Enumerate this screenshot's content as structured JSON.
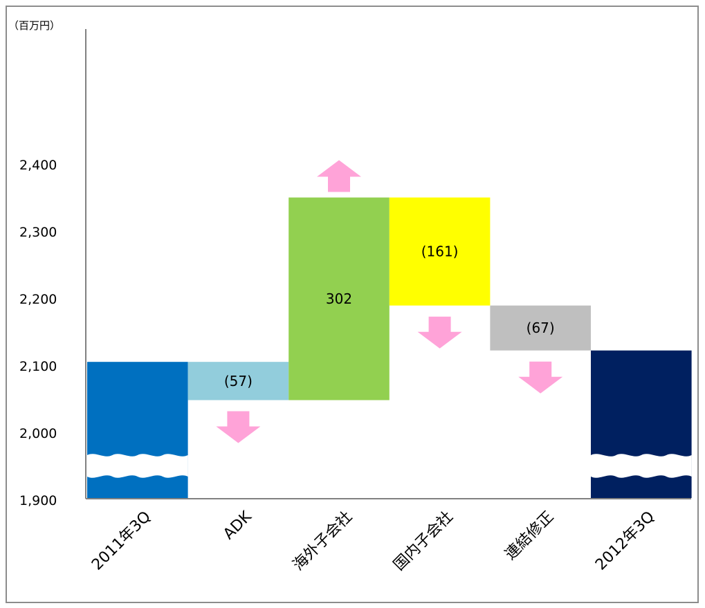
{
  "chart_data": {
    "type": "waterfall",
    "unit_label": "（百万円）",
    "y_ticks": [
      1900,
      2000,
      2100,
      2200,
      2300,
      2400
    ],
    "y_tick_labels": [
      "1,900",
      "2,000",
      "2,100",
      "2,200",
      "2,300",
      "2,400"
    ],
    "ylim": [
      1790,
      2470
    ],
    "grid": false,
    "axis_break": true,
    "categories": [
      "2011年3Q",
      "ADK",
      "海外子会社",
      "国内子会社",
      "連結修正",
      "2012年3Q"
    ],
    "bars": [
      {
        "label": "2011年3Q",
        "kind": "total",
        "value": 2106,
        "bar_label": "",
        "color": "#0070c0"
      },
      {
        "label": "ADK",
        "kind": "delta",
        "from": 2106,
        "to": 2049,
        "change": -57,
        "bar_label": "(57)",
        "color": "#92cddc"
      },
      {
        "label": "海外子会社",
        "kind": "delta",
        "from": 2049,
        "to": 2351,
        "change": 302,
        "bar_label": "302",
        "color": "#92d050"
      },
      {
        "label": "国内子会社",
        "kind": "delta",
        "from": 2351,
        "to": 2190,
        "change": -161,
        "bar_label": "(161)",
        "color": "#ffff00"
      },
      {
        "label": "連結修正",
        "kind": "delta",
        "from": 2190,
        "to": 2123,
        "change": -67,
        "bar_label": "(67)",
        "color": "#bfbfbf"
      },
      {
        "label": "2012年3Q",
        "kind": "total",
        "value": 2123,
        "bar_label": "",
        "color": "#002060"
      }
    ],
    "arrow_color": "#ffa3d8"
  }
}
